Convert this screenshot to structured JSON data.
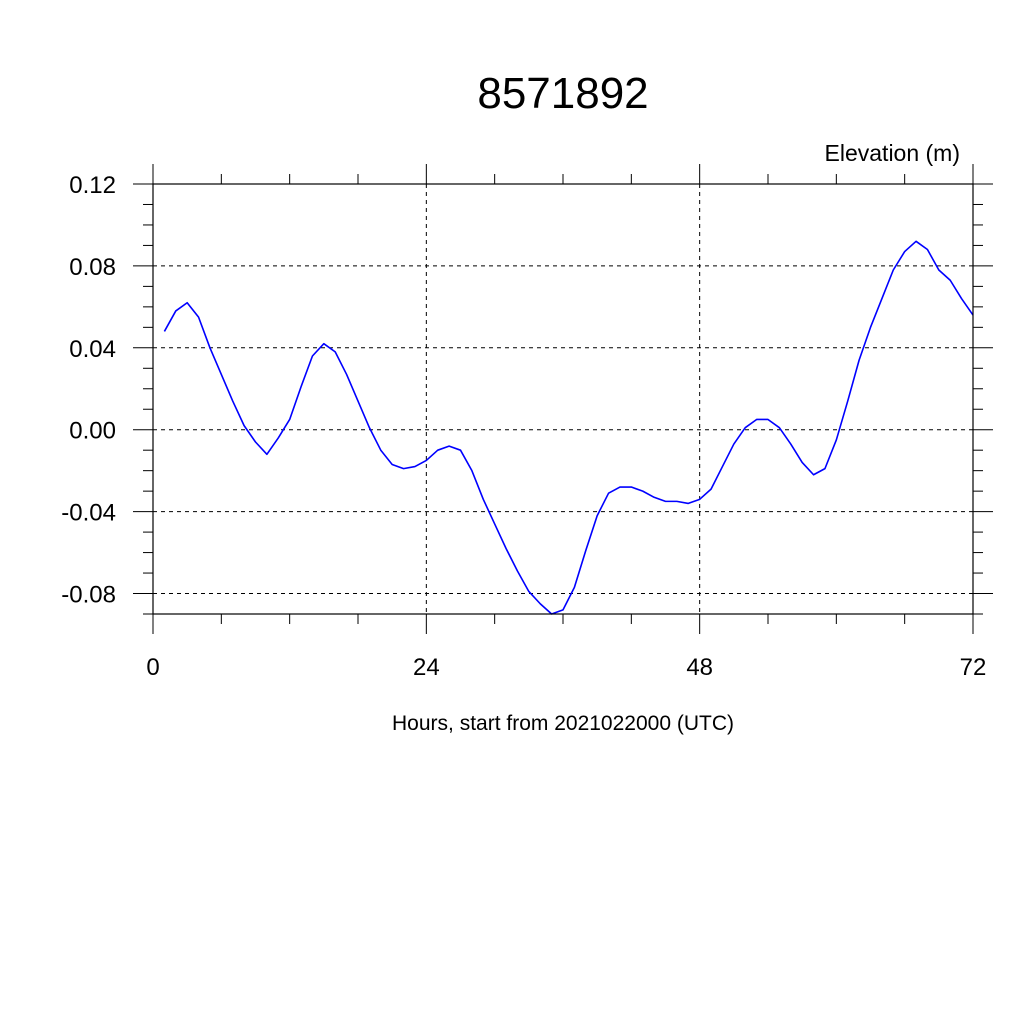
{
  "colors": {
    "line": "#0000ff",
    "axis": "#000000",
    "grid": "#000000",
    "background": "#ffffff"
  },
  "chart_data": {
    "type": "line",
    "title": "8571892",
    "ylabel": "Elevation (m)",
    "xlabel": "Hours, start from 2021022000 (UTC)",
    "xlim": [
      0,
      72
    ],
    "ylim": [
      -0.09,
      0.12
    ],
    "grid": true,
    "grid_style": "dashed",
    "x_ticks": [
      0,
      24,
      48,
      72
    ],
    "x_tick_labels": [
      "0",
      "24",
      "48",
      "72"
    ],
    "y_ticks": [
      0.12,
      0.08,
      0.04,
      0.0,
      -0.04,
      -0.08
    ],
    "y_tick_labels": [
      "0.12",
      "0.08",
      "0.04",
      "0.00",
      "-0.04",
      "-0.08"
    ],
    "x_minor_step": 6,
    "y_minor_step": 0.01,
    "series": [
      {
        "x": [
          1,
          2,
          3,
          4,
          5,
          6,
          7,
          8,
          9,
          10,
          11,
          12,
          13,
          14,
          15,
          16,
          17,
          18,
          19,
          20,
          21,
          22,
          23,
          24,
          25,
          26,
          27,
          28,
          29,
          30,
          31,
          32,
          33,
          34,
          35,
          36,
          37,
          38,
          39,
          40,
          41,
          42,
          43,
          44,
          45,
          46,
          47,
          48,
          49,
          50,
          51,
          52,
          53,
          54,
          55,
          56,
          57,
          58,
          59,
          60,
          61,
          62,
          63,
          64,
          65,
          66,
          67,
          68,
          69,
          70,
          71,
          72
        ],
        "values": [
          0.048,
          0.058,
          0.062,
          0.055,
          0.04,
          0.027,
          0.014,
          0.002,
          -0.006,
          -0.012,
          -0.004,
          0.005,
          0.021,
          0.036,
          0.042,
          0.038,
          0.027,
          0.014,
          0.001,
          -0.01,
          -0.017,
          -0.019,
          -0.018,
          -0.015,
          -0.01,
          -0.008,
          -0.01,
          -0.02,
          -0.034,
          -0.046,
          -0.058,
          -0.069,
          -0.079,
          -0.085,
          -0.09,
          -0.088,
          -0.077,
          -0.059,
          -0.042,
          -0.031,
          -0.028,
          -0.028,
          -0.03,
          -0.033,
          -0.035,
          -0.035,
          -0.036,
          -0.034,
          -0.029,
          -0.018,
          -0.007,
          0.001,
          0.005,
          0.005,
          0.001,
          -0.007,
          -0.016,
          -0.022,
          -0.019,
          -0.005,
          0.014,
          0.034,
          0.05,
          0.064,
          0.078,
          0.087,
          0.092,
          0.088,
          0.078,
          0.073,
          0.064,
          0.056
        ]
      }
    ]
  }
}
